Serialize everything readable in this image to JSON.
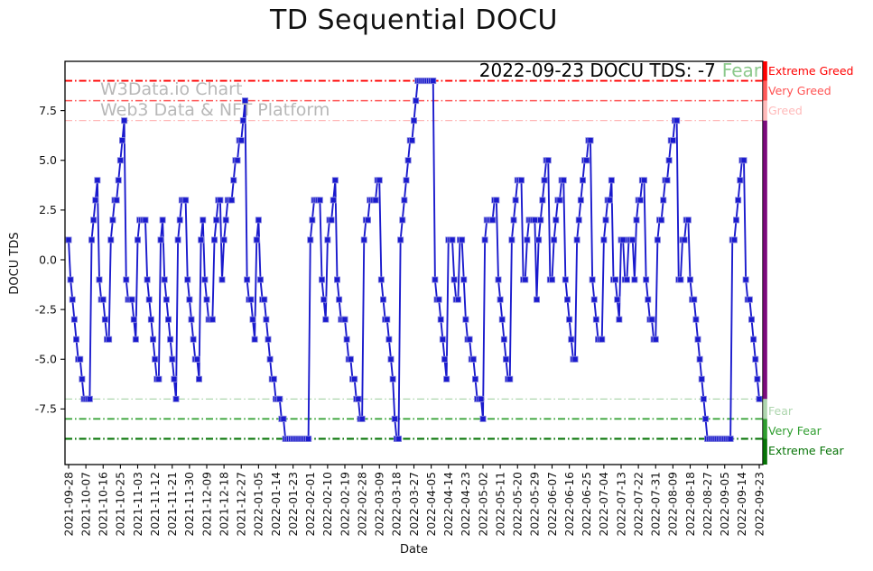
{
  "title": "TD Sequential DOCU",
  "annotation": {
    "text": "2022-09-23 DOCU TDS: -7",
    "status": "Fear",
    "status_color": "#8cc98c"
  },
  "watermark": {
    "line1": "W3Data.io Chart",
    "line2": "Web3 Data & NFT Platform"
  },
  "axes": {
    "xlabel": "Date",
    "ylabel": "DOCU TDS",
    "yticks": [
      {
        "label": "7.5",
        "value": 7.5
      },
      {
        "label": "5.0",
        "value": 5.0
      },
      {
        "label": "2.5",
        "value": 2.5
      },
      {
        "label": "0.0",
        "value": 0.0
      },
      {
        "label": "-2.5",
        "value": -2.5
      },
      {
        "label": "-5.0",
        "value": -5.0
      },
      {
        "label": "-7.5",
        "value": -7.5
      }
    ]
  },
  "thresholds": [
    {
      "label": "Extreme Greed",
      "value": 9,
      "color": "#ff0000",
      "width": 1.8
    },
    {
      "label": "Very Greed",
      "value": 8,
      "color": "#ff5252",
      "width": 1.5
    },
    {
      "label": "Greed",
      "value": 7,
      "color": "#ffb9b9",
      "width": 1.2
    },
    {
      "label": "Fear",
      "value": -7,
      "color": "#aed6ae",
      "width": 1.2
    },
    {
      "label": "Very Fear",
      "value": -8,
      "color": "#2f9e2f",
      "width": 1.8
    },
    {
      "label": "Extreme Fear",
      "value": -9,
      "color": "#077407",
      "width": 2.2
    }
  ],
  "sentiment_bar": {
    "segments": [
      {
        "from": 10.3,
        "to": 9,
        "color": "#fe0000"
      },
      {
        "from": 9,
        "to": 8,
        "color": "#ff5a5a"
      },
      {
        "from": 8,
        "to": 7,
        "color": "#ffb9b9"
      },
      {
        "from": 7,
        "to": -7,
        "color": "#7c0a7c"
      },
      {
        "from": -7,
        "to": -8,
        "color": "#aed6ae"
      },
      {
        "from": -8,
        "to": -9,
        "color": "#2f9e2f"
      },
      {
        "from": -9,
        "to": -10.3,
        "color": "#067306"
      }
    ]
  },
  "chart_data": {
    "type": "line",
    "series_name": "DOCU TDS",
    "title": "TD Sequential DOCU",
    "xlabel": "Date",
    "ylabel": "DOCU TDS",
    "start_date": "2021-09-28",
    "end_date": "2022-09-23",
    "frequency": "daily",
    "tick_every_n_points": 9,
    "ylim": [
      -10.3,
      10.0
    ],
    "line_color": "#1a1acd",
    "marker": "square",
    "xticklabels": [
      "2021-09-28",
      "2021-10-07",
      "2021-10-16",
      "2021-10-25",
      "2021-11-03",
      "2021-11-12",
      "2021-11-21",
      "2021-11-30",
      "2021-12-09",
      "2021-12-18",
      "2021-12-27",
      "2022-01-05",
      "2022-01-14",
      "2022-01-23",
      "2022-02-01",
      "2022-02-10",
      "2022-02-19",
      "2022-02-28",
      "2022-03-09",
      "2022-03-18",
      "2022-03-27",
      "2022-04-05",
      "2022-04-14",
      "2022-04-23",
      "2022-05-02",
      "2022-05-11",
      "2022-05-20",
      "2022-05-29",
      "2022-06-07",
      "2022-06-16",
      "2022-06-25",
      "2022-07-04",
      "2022-07-13",
      "2022-07-22",
      "2022-07-31",
      "2022-08-09",
      "2022-08-18",
      "2022-08-27",
      "2022-09-05",
      "2022-09-14",
      "2022-09-23"
    ],
    "values": [
      1,
      -1,
      -2,
      -3,
      -4,
      -5,
      -5,
      -6,
      -7,
      -7,
      -7,
      -7,
      1,
      2,
      3,
      4,
      -1,
      -2,
      -2,
      -3,
      -4,
      -4,
      1,
      2,
      3,
      3,
      4,
      5,
      6,
      7,
      -1,
      -2,
      -2,
      -2,
      -3,
      -4,
      1,
      2,
      2,
      2,
      2,
      -1,
      -2,
      -3,
      -4,
      -5,
      -6,
      -6,
      1,
      2,
      -1,
      -2,
      -3,
      -4,
      -5,
      -6,
      -7,
      1,
      2,
      3,
      3,
      3,
      -1,
      -2,
      -3,
      -4,
      -5,
      -5,
      -6,
      1,
      2,
      -1,
      -2,
      -3,
      -3,
      -3,
      1,
      2,
      3,
      3,
      -1,
      1,
      2,
      3,
      3,
      3,
      4,
      5,
      5,
      6,
      6,
      7,
      8,
      -1,
      -2,
      -2,
      -3,
      -4,
      1,
      2,
      -1,
      -2,
      -2,
      -3,
      -4,
      -5,
      -6,
      -6,
      -7,
      -7,
      -7,
      -8,
      -8,
      -9,
      -9,
      -9,
      -9,
      -9,
      -9,
      -9,
      -9,
      -9,
      -9,
      -9,
      -9,
      -9,
      1,
      2,
      3,
      3,
      3,
      3,
      -1,
      -2,
      -3,
      1,
      2,
      2,
      3,
      4,
      -1,
      -2,
      -3,
      -3,
      -3,
      -4,
      -5,
      -5,
      -6,
      -6,
      -7,
      -7,
      -8,
      -8,
      1,
      2,
      2,
      3,
      3,
      3,
      3,
      4,
      4,
      -1,
      -2,
      -3,
      -3,
      -4,
      -5,
      -6,
      -8,
      -9,
      -9,
      1,
      2,
      3,
      4,
      5,
      6,
      6,
      7,
      8,
      9,
      9,
      9,
      9,
      9,
      9,
      9,
      9,
      9,
      -1,
      -2,
      -2,
      -3,
      -4,
      -5,
      -6,
      1,
      1,
      1,
      -1,
      -2,
      -2,
      1,
      1,
      -1,
      -3,
      -4,
      -4,
      -5,
      -5,
      -6,
      -7,
      -7,
      -7,
      -8,
      1,
      2,
      2,
      2,
      2,
      3,
      3,
      -1,
      -2,
      -3,
      -4,
      -5,
      -6,
      -6,
      1,
      2,
      3,
      4,
      4,
      4,
      -1,
      -1,
      1,
      2,
      2,
      2,
      2,
      -2,
      1,
      2,
      3,
      4,
      5,
      5,
      -1,
      -1,
      1,
      2,
      3,
      3,
      4,
      4,
      -1,
      -2,
      -3,
      -4,
      -5,
      -5,
      1,
      2,
      3,
      4,
      5,
      5,
      6,
      6,
      -1,
      -2,
      -3,
      -4,
      -4,
      -4,
      1,
      2,
      3,
      3,
      4,
      -1,
      -1,
      -2,
      -3,
      1,
      1,
      -1,
      -1,
      1,
      1,
      1,
      -1,
      2,
      3,
      3,
      4,
      4,
      -1,
      -2,
      -3,
      -3,
      -4,
      -4,
      1,
      2,
      2,
      3,
      4,
      4,
      5,
      6,
      6,
      7,
      7,
      -1,
      -1,
      1,
      1,
      2,
      2,
      -1,
      -2,
      -2,
      -3,
      -4,
      -5,
      -6,
      -7,
      -8,
      -9,
      -9,
      -9,
      -9,
      -9,
      -9,
      -9,
      -9,
      -9,
      -9,
      -9,
      -9,
      -9,
      1,
      1,
      2,
      3,
      4,
      5,
      5,
      -1,
      -2,
      -2,
      -3,
      -4,
      -5,
      -6,
      -7
    ]
  }
}
